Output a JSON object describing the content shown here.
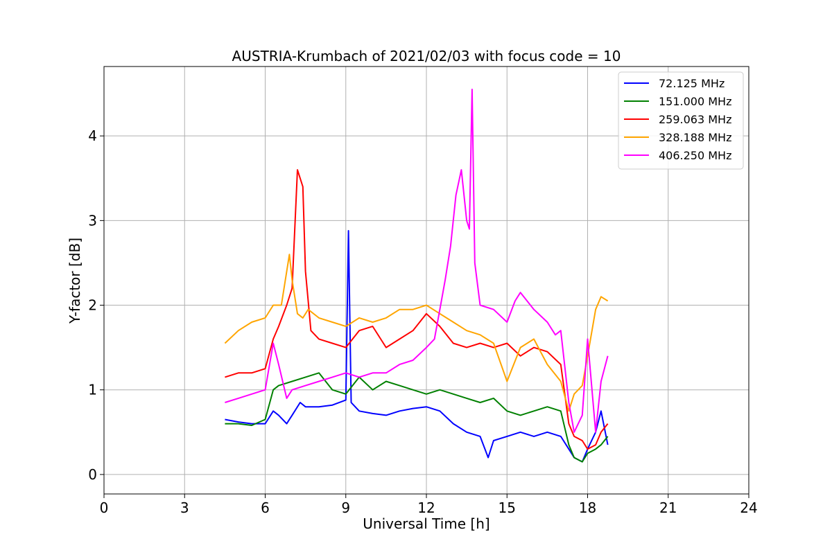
{
  "chart_data": {
    "type": "line",
    "title": "AUSTRIA-Krumbach of 2021/02/03 with focus code = 10",
    "xlabel": "Universal Time [h]",
    "ylabel": "Y-factor [dB]",
    "xlim": [
      0,
      24
    ],
    "ylim": [
      -0.23,
      4.82
    ],
    "xticks": [
      0,
      3,
      6,
      9,
      12,
      15,
      18,
      21,
      24
    ],
    "yticks": [
      0,
      1,
      2,
      3,
      4
    ],
    "xtick_labels": [
      "0",
      "3",
      "6",
      "9",
      "12",
      "15",
      "18",
      "21",
      "24"
    ],
    "ytick_labels": [
      "0",
      "1",
      "2",
      "3",
      "4"
    ],
    "grid": true,
    "legend_position": "top-right",
    "series": [
      {
        "name": "72.125 MHz",
        "color": "#0000ff",
        "x": [
          4.5,
          5.0,
          5.5,
          6.0,
          6.3,
          6.5,
          6.8,
          7.0,
          7.3,
          7.5,
          8.0,
          8.5,
          9.0,
          9.1,
          9.2,
          9.5,
          10.0,
          10.5,
          11.0,
          11.5,
          12.0,
          12.5,
          13.0,
          13.5,
          14.0,
          14.3,
          14.5,
          15.0,
          15.5,
          16.0,
          16.5,
          17.0,
          17.3,
          17.5,
          17.8,
          18.0,
          18.3,
          18.5,
          18.75
        ],
        "y": [
          0.65,
          0.62,
          0.6,
          0.6,
          0.75,
          0.7,
          0.6,
          0.7,
          0.85,
          0.8,
          0.8,
          0.82,
          0.88,
          2.88,
          0.85,
          0.75,
          0.72,
          0.7,
          0.75,
          0.78,
          0.8,
          0.75,
          0.6,
          0.5,
          0.45,
          0.2,
          0.4,
          0.45,
          0.5,
          0.45,
          0.5,
          0.45,
          0.3,
          0.2,
          0.15,
          0.3,
          0.5,
          0.75,
          0.35
        ]
      },
      {
        "name": "151.000 MHz",
        "color": "#008000",
        "x": [
          4.5,
          5.0,
          5.5,
          6.0,
          6.3,
          6.5,
          7.0,
          7.5,
          8.0,
          8.5,
          9.0,
          9.5,
          10.0,
          10.5,
          11.0,
          11.5,
          12.0,
          12.5,
          13.0,
          13.5,
          14.0,
          14.5,
          15.0,
          15.5,
          16.0,
          16.5,
          17.0,
          17.3,
          17.5,
          17.8,
          18.0,
          18.3,
          18.5,
          18.75
        ],
        "y": [
          0.6,
          0.6,
          0.58,
          0.65,
          1.0,
          1.05,
          1.1,
          1.15,
          1.2,
          1.0,
          0.95,
          1.15,
          1.0,
          1.1,
          1.05,
          1.0,
          0.95,
          1.0,
          0.95,
          0.9,
          0.85,
          0.9,
          0.75,
          0.7,
          0.75,
          0.8,
          0.75,
          0.35,
          0.2,
          0.15,
          0.25,
          0.3,
          0.35,
          0.45
        ]
      },
      {
        "name": "259.063 MHz",
        "color": "#ff0000",
        "x": [
          4.5,
          5.0,
          5.5,
          6.0,
          6.3,
          6.5,
          6.8,
          7.0,
          7.2,
          7.3,
          7.4,
          7.5,
          7.7,
          8.0,
          8.5,
          9.0,
          9.5,
          10.0,
          10.5,
          11.0,
          11.5,
          12.0,
          12.5,
          13.0,
          13.5,
          14.0,
          14.5,
          15.0,
          15.5,
          16.0,
          16.5,
          17.0,
          17.3,
          17.5,
          17.8,
          18.0,
          18.3,
          18.5,
          18.75
        ],
        "y": [
          1.15,
          1.2,
          1.2,
          1.25,
          1.6,
          1.75,
          2.0,
          2.2,
          3.6,
          3.5,
          3.4,
          2.4,
          1.7,
          1.6,
          1.55,
          1.5,
          1.7,
          1.75,
          1.5,
          1.6,
          1.7,
          1.9,
          1.75,
          1.55,
          1.5,
          1.55,
          1.5,
          1.55,
          1.4,
          1.5,
          1.45,
          1.3,
          0.6,
          0.45,
          0.4,
          0.3,
          0.35,
          0.5,
          0.6
        ]
      },
      {
        "name": "328.188 MHz",
        "color": "#ffa500",
        "x": [
          4.5,
          5.0,
          5.5,
          6.0,
          6.3,
          6.6,
          6.9,
          7.0,
          7.2,
          7.4,
          7.6,
          8.0,
          8.5,
          9.0,
          9.5,
          10.0,
          10.5,
          11.0,
          11.5,
          12.0,
          12.5,
          13.0,
          13.5,
          14.0,
          14.5,
          15.0,
          15.5,
          16.0,
          16.5,
          17.0,
          17.3,
          17.5,
          17.8,
          18.0,
          18.3,
          18.5,
          18.75
        ],
        "y": [
          1.55,
          1.7,
          1.8,
          1.85,
          2.0,
          2.0,
          2.6,
          2.3,
          1.9,
          1.85,
          1.95,
          1.85,
          1.8,
          1.75,
          1.85,
          1.8,
          1.85,
          1.95,
          1.95,
          2.0,
          1.9,
          1.8,
          1.7,
          1.65,
          1.55,
          1.1,
          1.5,
          1.6,
          1.3,
          1.1,
          0.75,
          0.95,
          1.05,
          1.4,
          1.95,
          2.1,
          2.05
        ]
      },
      {
        "name": "406.250 MHz",
        "color": "#ff00ff",
        "x": [
          4.5,
          5.0,
          5.5,
          6.0,
          6.3,
          6.5,
          6.8,
          7.0,
          7.5,
          8.0,
          8.5,
          9.0,
          9.5,
          10.0,
          10.5,
          11.0,
          11.5,
          12.0,
          12.3,
          12.5,
          12.7,
          12.9,
          13.1,
          13.3,
          13.5,
          13.6,
          13.7,
          13.8,
          14.0,
          14.5,
          15.0,
          15.3,
          15.5,
          16.0,
          16.5,
          16.8,
          17.0,
          17.3,
          17.5,
          17.8,
          18.0,
          18.3,
          18.5,
          18.75
        ],
        "y": [
          0.85,
          0.9,
          0.95,
          1.0,
          1.55,
          1.3,
          0.9,
          1.0,
          1.05,
          1.1,
          1.15,
          1.2,
          1.15,
          1.2,
          1.2,
          1.3,
          1.35,
          1.5,
          1.6,
          1.95,
          2.3,
          2.7,
          3.3,
          3.6,
          3.0,
          2.9,
          4.55,
          2.5,
          2.0,
          1.95,
          1.8,
          2.05,
          2.15,
          1.95,
          1.8,
          1.65,
          1.7,
          0.85,
          0.5,
          0.7,
          1.6,
          0.5,
          1.1,
          1.4
        ]
      }
    ]
  }
}
